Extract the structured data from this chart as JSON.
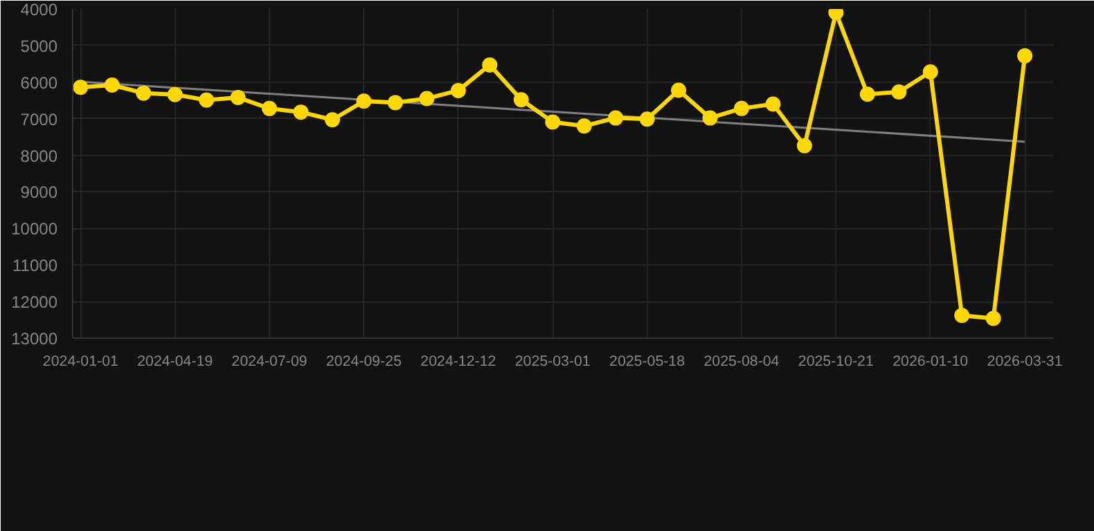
{
  "chart_data": {
    "type": "line",
    "categories": [
      "2024-01-01",
      null,
      null,
      "2024-04-19",
      null,
      null,
      "2024-07-09",
      null,
      null,
      "2024-09-25",
      null,
      null,
      "2024-12-12",
      null,
      null,
      "2025-03-01",
      null,
      null,
      "2025-05-18",
      null,
      null,
      "2025-08-04",
      null,
      null,
      "2025-10-21",
      null,
      null,
      "2026-01-10",
      null,
      null,
      "2026-03-31"
    ],
    "series": [
      {
        "color": "#ffd700",
        "marker": "circle",
        "values": [
          6140,
          6080,
          6300,
          6340,
          6490,
          6420,
          6720,
          6820,
          7030,
          6520,
          6560,
          6450,
          6230,
          5530,
          6480,
          7090,
          7200,
          6980,
          7010,
          6220,
          6980,
          6720,
          6600,
          7740,
          4100,
          6330,
          6270,
          5720,
          12380,
          12460,
          5280
        ]
      },
      {
        "type": "line",
        "color": "#808080",
        "marker": "none",
        "values": [
          5990,
          null,
          null,
          null,
          null,
          null,
          null,
          null,
          null,
          null,
          null,
          null,
          null,
          null,
          null,
          null,
          null,
          null,
          null,
          null,
          null,
          null,
          null,
          null,
          null,
          null,
          null,
          null,
          null,
          null,
          7630
        ]
      }
    ],
    "ylim": [
      13000,
      4000
    ],
    "yticks": [
      4000,
      5000,
      6000,
      7000,
      8000,
      9000,
      10000,
      11000,
      12000,
      13000
    ],
    "grid": true
  }
}
